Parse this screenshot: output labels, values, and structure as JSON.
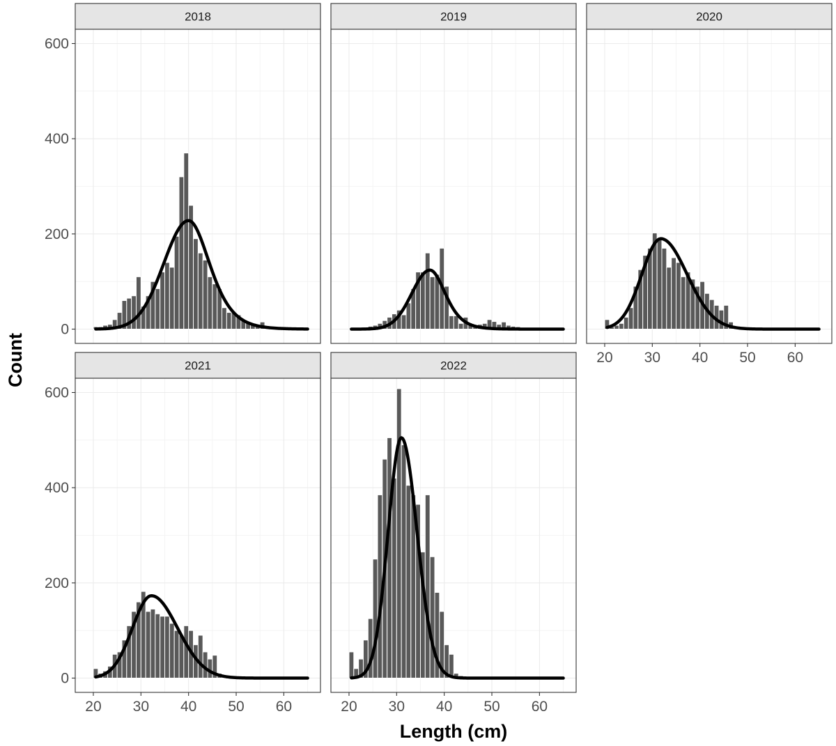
{
  "chart_data": {
    "type": "bar",
    "xlabel": "Length (cm)",
    "ylabel": "Count",
    "xlim": [
      20,
      65
    ],
    "ylim": [
      0,
      600
    ],
    "x_ticks": [
      20,
      30,
      40,
      50,
      60
    ],
    "y_ticks": [
      0,
      200,
      400,
      600
    ],
    "grid": true,
    "bin_width": 1,
    "bar_color": "#595959",
    "curve_color": "#000000",
    "facets": [
      {
        "label": "2018",
        "bins": [
          [
            20.5,
            5
          ],
          [
            21.5,
            5
          ],
          [
            22.5,
            8
          ],
          [
            23.5,
            10
          ],
          [
            24.5,
            20
          ],
          [
            25.5,
            35
          ],
          [
            26.5,
            60
          ],
          [
            27.5,
            65
          ],
          [
            28.5,
            70
          ],
          [
            29.5,
            110
          ],
          [
            30.5,
            48
          ],
          [
            31.5,
            70
          ],
          [
            32.5,
            100
          ],
          [
            33.5,
            85
          ],
          [
            34.5,
            120
          ],
          [
            35.5,
            140
          ],
          [
            36.5,
            130
          ],
          [
            37.5,
            195
          ],
          [
            38.5,
            320
          ],
          [
            39.5,
            370
          ],
          [
            40.5,
            260
          ],
          [
            41.5,
            190
          ],
          [
            42.5,
            160
          ],
          [
            43.5,
            145
          ],
          [
            44.5,
            110
          ],
          [
            45.5,
            95
          ],
          [
            46.5,
            85
          ],
          [
            47.5,
            45
          ],
          [
            48.5,
            35
          ],
          [
            49.5,
            35
          ],
          [
            50.5,
            30
          ],
          [
            51.5,
            20
          ],
          [
            52.5,
            15
          ],
          [
            53.5,
            12
          ],
          [
            54.5,
            10
          ],
          [
            55.5,
            15
          ],
          [
            56.5,
            5
          ],
          [
            57.5,
            3
          ],
          [
            58.5,
            2
          ],
          [
            59.5,
            2
          ]
        ],
        "curve": {
          "peak_x": 40,
          "peak_y": 228,
          "sd_left": 5.2,
          "sd_right": 4.8,
          "tail": "logistic"
        }
      },
      {
        "label": "2019",
        "bins": [
          [
            20.5,
            2
          ],
          [
            21.5,
            2
          ],
          [
            22.5,
            3
          ],
          [
            23.5,
            4
          ],
          [
            24.5,
            6
          ],
          [
            25.5,
            8
          ],
          [
            26.5,
            12
          ],
          [
            27.5,
            18
          ],
          [
            28.5,
            25
          ],
          [
            29.5,
            32
          ],
          [
            30.5,
            40
          ],
          [
            31.5,
            30
          ],
          [
            32.5,
            55
          ],
          [
            33.5,
            85
          ],
          [
            34.5,
            120
          ],
          [
            35.5,
            120
          ],
          [
            36.5,
            160
          ],
          [
            37.5,
            110
          ],
          [
            38.5,
            115
          ],
          [
            39.5,
            170
          ],
          [
            40.5,
            90
          ],
          [
            41.5,
            28
          ],
          [
            42.5,
            28
          ],
          [
            43.5,
            12
          ],
          [
            44.5,
            25
          ],
          [
            45.5,
            10
          ],
          [
            46.5,
            8
          ],
          [
            47.5,
            10
          ],
          [
            48.5,
            12
          ],
          [
            49.5,
            20
          ],
          [
            50.5,
            16
          ],
          [
            51.5,
            10
          ],
          [
            52.5,
            15
          ],
          [
            53.5,
            8
          ],
          [
            54.5,
            6
          ],
          [
            55.5,
            5
          ],
          [
            56.5,
            3
          ],
          [
            57.5,
            2
          ]
        ],
        "curve": {
          "peak_x": 37,
          "peak_y": 124,
          "sd_left": 3.8,
          "sd_right": 3.5,
          "tail": "logistic"
        }
      },
      {
        "label": "2020",
        "bins": [
          [
            20.5,
            20
          ],
          [
            21.5,
            5
          ],
          [
            22.5,
            8
          ],
          [
            23.5,
            12
          ],
          [
            24.5,
            25
          ],
          [
            25.5,
            45
          ],
          [
            26.5,
            90
          ],
          [
            27.5,
            125
          ],
          [
            28.5,
            155
          ],
          [
            29.5,
            170
          ],
          [
            30.5,
            202
          ],
          [
            31.5,
            190
          ],
          [
            32.5,
            170
          ],
          [
            33.5,
            130
          ],
          [
            34.5,
            150
          ],
          [
            35.5,
            140
          ],
          [
            36.5,
            110
          ],
          [
            37.5,
            120
          ],
          [
            38.5,
            105
          ],
          [
            39.5,
            90
          ],
          [
            40.5,
            100
          ],
          [
            41.5,
            75
          ],
          [
            42.5,
            62
          ],
          [
            43.5,
            50
          ],
          [
            44.5,
            40
          ],
          [
            45.5,
            50
          ],
          [
            46.5,
            15
          ],
          [
            47.5,
            6
          ],
          [
            48.5,
            4
          ],
          [
            49.5,
            2
          ]
        ],
        "curve": {
          "peak_x": 31.8,
          "peak_y": 190,
          "sd_left": 4.0,
          "sd_right": 5.5,
          "tail": "gaussian"
        }
      },
      {
        "label": "2021",
        "bins": [
          [
            20.5,
            20
          ],
          [
            21.5,
            10
          ],
          [
            22.5,
            15
          ],
          [
            23.5,
            25
          ],
          [
            24.5,
            50
          ],
          [
            25.5,
            55
          ],
          [
            26.5,
            80
          ],
          [
            27.5,
            110
          ],
          [
            28.5,
            140
          ],
          [
            29.5,
            160
          ],
          [
            30.5,
            182
          ],
          [
            31.5,
            140
          ],
          [
            32.5,
            145
          ],
          [
            33.5,
            135
          ],
          [
            34.5,
            130
          ],
          [
            35.5,
            130
          ],
          [
            36.5,
            115
          ],
          [
            37.5,
            100
          ],
          [
            38.5,
            90
          ],
          [
            39.5,
            110
          ],
          [
            40.5,
            100
          ],
          [
            41.5,
            70
          ],
          [
            42.5,
            90
          ],
          [
            43.5,
            55
          ],
          [
            44.5,
            40
          ],
          [
            45.5,
            48
          ],
          [
            46.5,
            10
          ],
          [
            47.5,
            5
          ],
          [
            48.5,
            3
          ],
          [
            49.5,
            2
          ]
        ],
        "curve": {
          "peak_x": 32.2,
          "peak_y": 173,
          "sd_left": 4.0,
          "sd_right": 5.5,
          "tail": "gaussian"
        }
      },
      {
        "label": "2022",
        "bins": [
          [
            20.5,
            55
          ],
          [
            21.5,
            20
          ],
          [
            22.5,
            40
          ],
          [
            23.5,
            80
          ],
          [
            24.5,
            125
          ],
          [
            25.5,
            250
          ],
          [
            26.5,
            385
          ],
          [
            27.5,
            460
          ],
          [
            28.5,
            505
          ],
          [
            29.5,
            420
          ],
          [
            30.5,
            608
          ],
          [
            31.5,
            490
          ],
          [
            32.5,
            405
          ],
          [
            33.5,
            385
          ],
          [
            34.5,
            365
          ],
          [
            35.5,
            265
          ],
          [
            36.5,
            385
          ],
          [
            37.5,
            255
          ],
          [
            38.5,
            180
          ],
          [
            39.5,
            140
          ],
          [
            40.5,
            70
          ],
          [
            41.5,
            50
          ],
          [
            42.5,
            10
          ],
          [
            43.5,
            5
          ],
          [
            44.5,
            3
          ],
          [
            45.5,
            2
          ]
        ],
        "curve": {
          "peak_x": 31,
          "peak_y": 505,
          "sd_left": 2.8,
          "sd_right": 3.3,
          "tail": "gaussian"
        }
      }
    ]
  }
}
